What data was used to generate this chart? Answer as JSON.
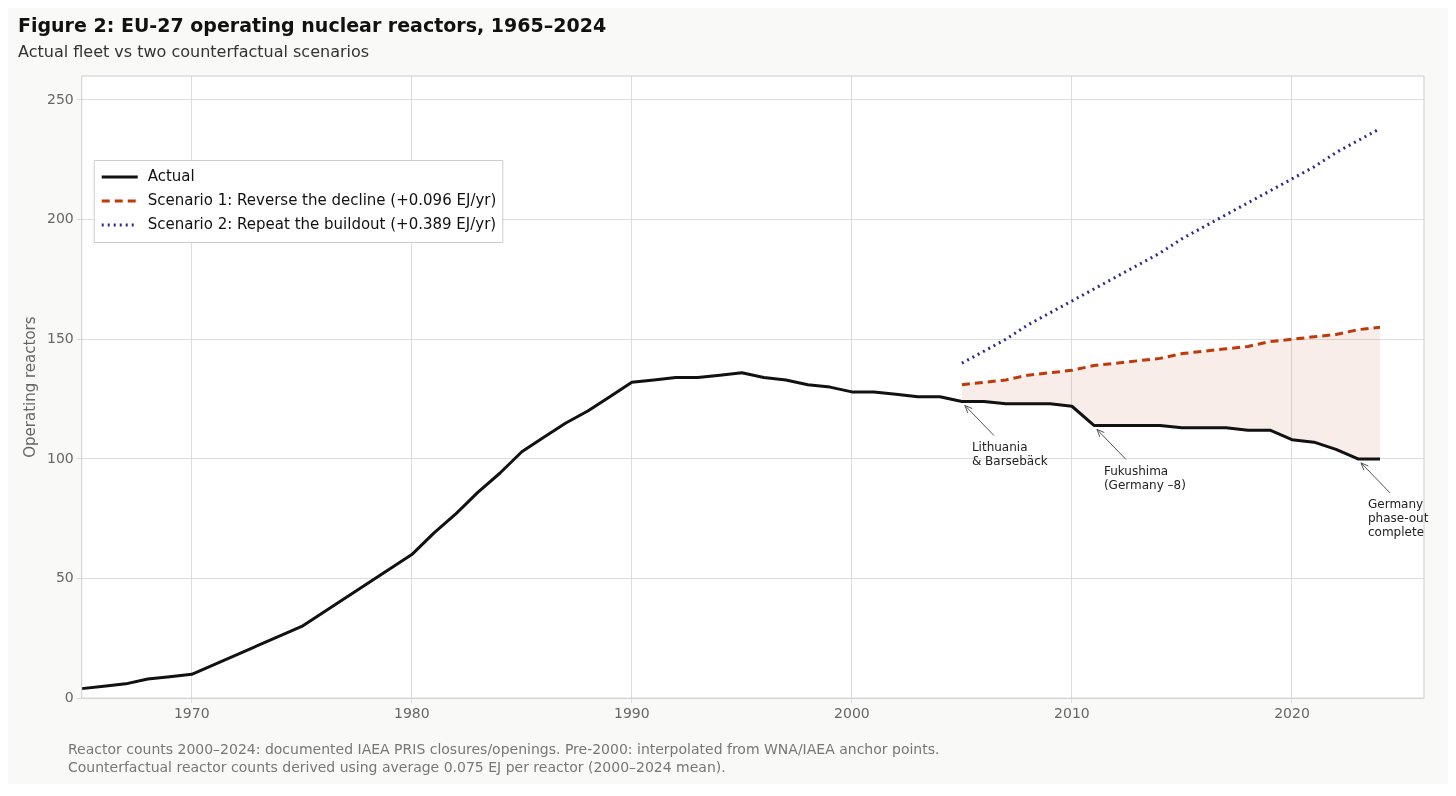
{
  "chart_data": {
    "type": "line",
    "title": "Figure 2: EU-27 operating nuclear reactors, 1965–2024",
    "subtitle": "Actual fleet vs two counterfactual scenarios",
    "ylabel": "Operating reactors",
    "xlim": [
      1965,
      2026
    ],
    "xticks": [
      1970,
      1980,
      1990,
      2000,
      2010,
      2020
    ],
    "ylim": [
      0,
      260
    ],
    "yticks": [
      0,
      50,
      100,
      150,
      200,
      250
    ],
    "grid": true,
    "legend": "top left",
    "marker": "none",
    "series": [
      {
        "name": "Actual",
        "color": "#111111",
        "line_style": "solid",
        "x": [
          1965,
          1966,
          1967,
          1968,
          1969,
          1970,
          1975,
          1980,
          1981,
          1982,
          1983,
          1984,
          1985,
          1986,
          1987,
          1988,
          1989,
          1990,
          1991,
          1992,
          1993,
          1994,
          1995,
          1996,
          1997,
          1998,
          1999,
          2000,
          2001,
          2002,
          2003,
          2004,
          2005,
          2006,
          2007,
          2008,
          2009,
          2010,
          2011,
          2012,
          2013,
          2014,
          2015,
          2016,
          2017,
          2018,
          2019,
          2020,
          2021,
          2022,
          2023,
          2024
        ],
        "values": [
          4,
          5,
          6,
          8,
          9,
          10,
          30,
          60,
          69,
          77,
          86,
          94,
          103,
          109,
          115,
          120,
          126,
          132,
          133,
          134,
          134,
          135,
          136,
          134,
          133,
          131,
          130,
          128,
          128,
          127,
          126,
          126,
          124,
          124,
          123,
          123,
          123,
          122,
          114,
          114,
          114,
          114,
          113,
          113,
          113,
          112,
          112,
          108,
          107,
          104,
          100,
          100
        ]
      },
      {
        "name": "Scenario 1: Reverse the decline (+0.096 EJ/yr)",
        "color": "#c0390b",
        "line_style": "dashed",
        "x": [
          2005,
          2006,
          2007,
          2008,
          2009,
          2010,
          2011,
          2012,
          2013,
          2014,
          2015,
          2016,
          2017,
          2018,
          2019,
          2020,
          2021,
          2022,
          2023,
          2024
        ],
        "values": [
          131,
          132,
          133,
          135,
          136,
          137,
          139,
          140,
          141,
          142,
          144,
          145,
          146,
          147,
          149,
          150,
          151,
          152,
          154,
          155
        ],
        "lower": [
          124,
          124,
          123,
          123,
          123,
          122,
          114,
          114,
          114,
          114,
          113,
          113,
          113,
          112,
          112,
          108,
          107,
          104,
          100,
          100
        ],
        "upper": [
          131,
          132,
          133,
          135,
          136,
          137,
          139,
          140,
          141,
          142,
          144,
          145,
          146,
          147,
          149,
          150,
          151,
          152,
          154,
          155
        ]
      },
      {
        "name": "Scenario 2: Repeat the buildout (+0.389 EJ/yr)",
        "color": "#2e2a8c",
        "line_style": "dotted",
        "x": [
          2005,
          2006,
          2007,
          2008,
          2009,
          2010,
          2011,
          2012,
          2013,
          2014,
          2015,
          2016,
          2017,
          2018,
          2019,
          2020,
          2021,
          2022,
          2023,
          2024
        ],
        "values": [
          140,
          145,
          150,
          156,
          161,
          166,
          171,
          176,
          181,
          186,
          192,
          197,
          202,
          207,
          212,
          217,
          222,
          228,
          233,
          238
        ]
      }
    ],
    "annotations": [
      {
        "text": "Lithuania\n& Barsebäck",
        "x": 2005,
        "y": 124
      },
      {
        "text": "Fukushima\n(Germany –8)",
        "x": 2011,
        "y": 114
      },
      {
        "text": "Germany\nphase-out\ncomplete",
        "x": 2023,
        "y": 100
      },
      "Reactor counts 2000–2024: documented IAEA PRIS closures/openings. Pre-2000: interpolated from WNA/IAEA anchor points.",
      "Counterfactual reactor counts derived using average 0.075 EJ per reactor (2000–2024 mean)."
    ]
  }
}
